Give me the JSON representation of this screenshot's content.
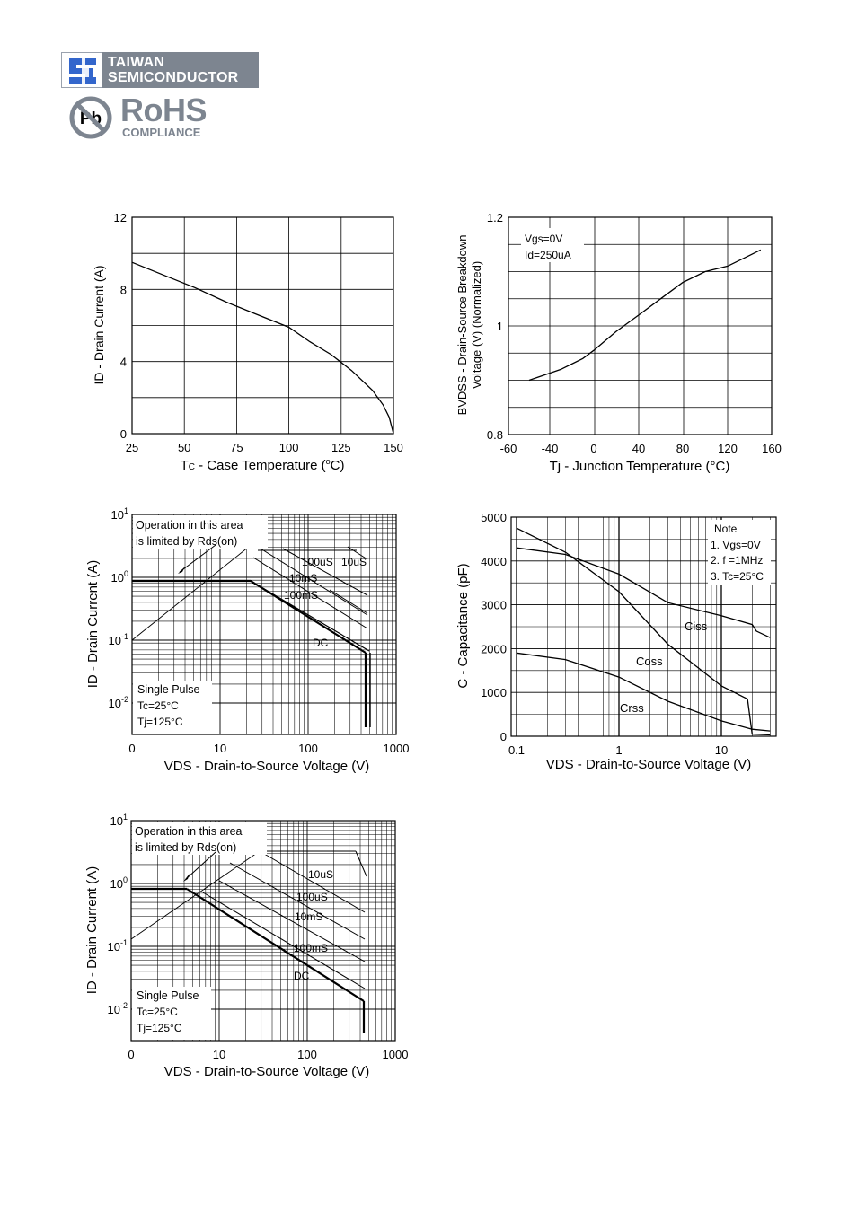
{
  "header": {
    "company_line1": "TAIWAN",
    "company_line2": "SEMICONDUCTOR",
    "rohs_title": "RoHS",
    "rohs_subtitle": "COMPLIANCE",
    "pb_label": "Pb"
  },
  "chart_data": [
    {
      "id": "id-vs-tc",
      "type": "line",
      "title": "",
      "xlabel_prefix": "T",
      "xlabel_sub": "C",
      "xlabel_rest": " - Case Temperature (",
      "xlabel_sup": "o",
      "xlabel_end": "C)",
      "ylabel": "ID - Drain Current (A)",
      "xlim": [
        25,
        150
      ],
      "ylim": [
        0,
        12
      ],
      "xticks": [
        "25",
        "50",
        "75",
        "100",
        "125",
        "150"
      ],
      "yticks": [
        "0",
        "4",
        "8",
        "12"
      ],
      "grid": true,
      "series": [
        {
          "x": [
            25,
            40,
            55,
            70,
            85,
            100,
            110,
            120,
            130,
            140,
            145,
            148,
            150
          ],
          "y": [
            9.5,
            8.8,
            8.1,
            7.3,
            6.6,
            5.9,
            5.1,
            4.4,
            3.5,
            2.4,
            1.6,
            0.9,
            0
          ]
        }
      ]
    },
    {
      "id": "bvdss-vs-tj",
      "type": "line",
      "title": "",
      "xlabel": "Tj - Junction Temperature (°C)",
      "ylabel_line1": "BVDSS - Drain-Source Breakdown",
      "ylabel_line2": "Voltage (V) (Normalized)",
      "annotation_lines": [
        "Vgs=0V",
        "Id=250uA"
      ],
      "xticks": [
        "-60",
        "-40",
        "0",
        "40",
        "80",
        "120",
        "160"
      ],
      "yticks": [
        "0.8",
        "1",
        "1.2"
      ],
      "ylim": [
        0.8,
        1.2
      ],
      "grid": true,
      "series": [
        {
          "x": [
            -50,
            -30,
            -10,
            0,
            20,
            40,
            60,
            80,
            100,
            120,
            140,
            150
          ],
          "y": [
            0.9,
            0.92,
            0.94,
            0.955,
            0.99,
            1.02,
            1.05,
            1.08,
            1.1,
            1.11,
            1.13,
            1.14
          ]
        }
      ]
    },
    {
      "id": "soa-1",
      "type": "line",
      "title": "",
      "xlabel": "VDS - Drain-to-Source Voltage (V)",
      "ylabel": "ID - Drain Current (A)",
      "xticks": [
        "0",
        "10",
        "100",
        "1000"
      ],
      "yticks": [
        "10-2",
        "10-1",
        "100",
        "101"
      ],
      "note_box_lines": [
        "Operation in this area",
        "is limited by Rds(on)"
      ],
      "pulse_lines": [
        "Single Pulse",
        "Tc=25°C",
        "Tj=125°C"
      ],
      "series_labels": [
        "100uS",
        "10uS",
        "10mS",
        "100mS",
        "DC"
      ],
      "grid": true
    },
    {
      "id": "capacitance",
      "type": "line",
      "title": "",
      "xlabel": "VDS - Drain-to-Source Voltage (V)",
      "ylabel": "C - Capacitance (pF)",
      "xticks": [
        "0.1",
        "1",
        "10"
      ],
      "yticks": [
        "0",
        "1000",
        "2000",
        "3000",
        "4000",
        "5000"
      ],
      "ylim": [
        0,
        5000
      ],
      "note_lines": [
        "Note",
        "1. Vgs=0V",
        "2. f =1MHz",
        "3. Tc=25°C"
      ],
      "grid": true,
      "series": [
        {
          "name": "Ciss",
          "x": [
            0.1,
            0.3,
            1,
            3,
            10,
            20,
            22,
            30
          ],
          "y": [
            4300,
            4150,
            3700,
            3050,
            2750,
            2550,
            2400,
            2250
          ]
        },
        {
          "name": "Coss",
          "x": [
            0.1,
            0.3,
            1,
            3,
            10,
            18,
            20,
            30
          ],
          "y": [
            4750,
            4200,
            3300,
            2100,
            1150,
            850,
            50,
            30
          ]
        },
        {
          "name": "Crss",
          "x": [
            0.1,
            0.3,
            1,
            3,
            10,
            20,
            30
          ],
          "y": [
            1900,
            1750,
            1350,
            800,
            350,
            160,
            120
          ]
        }
      ]
    },
    {
      "id": "soa-2",
      "type": "line",
      "title": "",
      "xlabel": "VDS - Drain-to-Source Voltage (V)",
      "ylabel": "ID - Drain Current (A)",
      "xticks": [
        "0",
        "10",
        "100",
        "1000"
      ],
      "yticks": [
        "10-2",
        "10-1",
        "100",
        "101"
      ],
      "note_box_lines": [
        "Operation in this area",
        "is limited by Rds(on)"
      ],
      "pulse_lines": [
        "Single Pulse",
        "Tc=25°C",
        "Tj=125°C"
      ],
      "series_labels": [
        "10uS",
        "100uS",
        "10mS",
        "100mS",
        "DC"
      ],
      "grid": true
    }
  ]
}
